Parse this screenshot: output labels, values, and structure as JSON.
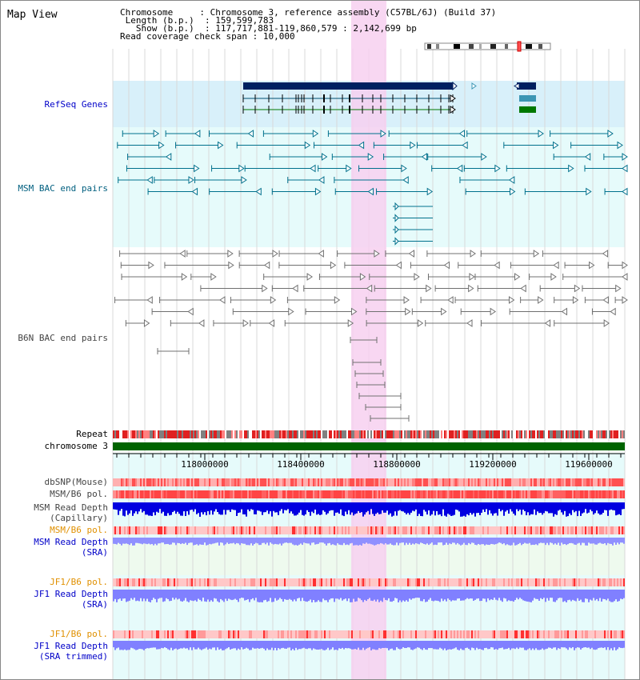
{
  "title": "Map View",
  "info": {
    "chromosome_key": "Chromosome",
    "chromosome_val": "Chromosome 3, reference assembly (C57BL/6J) (Build 37)",
    "length_key": "Length (b.p.)",
    "length_val": "159,599,783",
    "show_key": "Show (b.p.)",
    "show_val": "117,717,881-119,860,579 : 2,142,699 bp",
    "span_key": "Read coverage check span",
    "span_val": "10,000"
  },
  "tracks": {
    "refseq": "RefSeq Genes",
    "msm_bac": "MSM BAC end pairs",
    "b6n_bac": "B6N BAC end pairs",
    "repeat": "Repeat",
    "chromosome": "chromosome 3",
    "dbsnp": "dbSNP(Mouse)",
    "msm_pol1": "MSM/B6 pol.",
    "msm_depth_cap_1": "MSM Read Depth",
    "msm_depth_cap_2": "(Capillary)",
    "msm_pol2": "MSM/B6 pol.",
    "msm_depth_sra_1": "MSM Read Depth",
    "msm_depth_sra_2": "(SRA)",
    "jf1_pol1": "JF1/B6 pol.",
    "jf1_depth_sra_1": "JF1 Read Depth",
    "jf1_depth_sra_2": "(SRA)",
    "jf1_pol2": "JF1/B6 pol.",
    "jf1_depth_trim_1": "JF1 Read Depth",
    "jf1_depth_trim_2": "(SRA trimmed)"
  },
  "axis": {
    "ticks": [
      "118000000",
      "118400000",
      "118800000",
      "119200000",
      "119600000"
    ]
  },
  "colors": {
    "highlight": "#f7d0f0",
    "refseq_bg": "#d8f0fa",
    "track_bg": "#e6fbfb",
    "gene_navy": "#002060",
    "gene_cyan": "#3c96b4",
    "gene_green": "#007800",
    "msm_bac": "#00708c",
    "b6n_bac": "#707070",
    "chrom_green": "#006400",
    "depth_blue": "#0000e0",
    "depth_light": "#8080ff",
    "pol_red": "#ff4040"
  }
}
